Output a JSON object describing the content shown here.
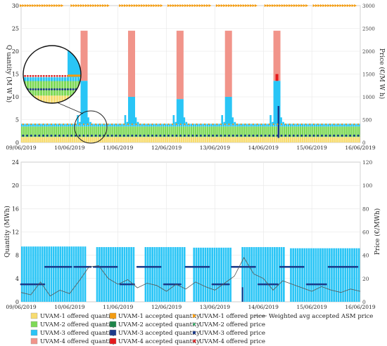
{
  "colors": {
    "uvam1_offered_quantity": "#f7dc6f",
    "uvam1_accepted_quantity": "#f39c12",
    "uvam2_offered_quantity": "#7ed957",
    "uvam2_accepted_quantity": "#1e8449",
    "uvam3_offered_quantity": "#29c5f6",
    "uvam3_accepted_quantity": "#1a3a8a",
    "uvam4_offered_quantity": "#f1948a",
    "uvam4_accepted_quantity": "#e41a1c",
    "uvam1_offered_price": "#f39c12",
    "uvam2_offered_price": "#27ae60",
    "uvam3_offered_price": "#1a3a8a",
    "uvam4_offered_price": "#d62728",
    "asm_price_line": "#555555"
  },
  "chart_data": [
    {
      "type": "bar",
      "panel": "top",
      "stacked": true,
      "xlabel": "",
      "ylabel": "Q uantity (M W h)",
      "ylabel_right": "Price (€/M W h)",
      "ylim": [
        0,
        30
      ],
      "ylim_right": [
        0,
        3000
      ],
      "yticks": [
        0,
        5,
        10,
        15,
        20,
        25,
        30
      ],
      "yticks_right": [
        0,
        500,
        1000,
        1500,
        2000,
        2500,
        3000
      ],
      "xlim": [
        "09/06/2019",
        "16/06/2019"
      ],
      "xtick_labels": [
        "09/06/2019",
        "10/06/2019",
        "11/06/2019",
        "12/06/2019",
        "13/06/2019",
        "14/06/2019",
        "15/06/2019",
        "16/06/2019"
      ],
      "grid": true,
      "baseline_offered": [
        {
          "name": "UVAM-1 offered quantity",
          "value": 1.2
        },
        {
          "name": "UVAM-2 offered quantity",
          "value": 2.3
        },
        {
          "name": "UVAM-3 offered quantity",
          "value": 0.6
        }
      ],
      "peaks": [
        {
          "day": "10/06/2019",
          "uvam3_offered": 13.5,
          "uvam4_offered": 24.5
        },
        {
          "day": "11/06/2019",
          "uvam3_offered": 10.0,
          "uvam4_offered": 24.5
        },
        {
          "day": "12/06/2019",
          "uvam3_offered": 9.5,
          "uvam4_offered": 24.5
        },
        {
          "day": "13/06/2019",
          "uvam3_offered": 10.0,
          "uvam4_offered": 24.5
        },
        {
          "day": "14/06/2019",
          "uvam3_offered": 13.5,
          "uvam4_offered": 24.5
        }
      ],
      "offered_price_levels": [
        {
          "name": "UVAM-1 offered price",
          "value": 3000
        },
        {
          "name": "UVAM-2 offered price",
          "value": 400
        },
        {
          "name": "UVAM-3 offered price",
          "value": 150
        }
      ]
    },
    {
      "type": "bar",
      "panel": "bottom",
      "stacked": true,
      "xlabel": "",
      "ylabel": "Quantity (MWh)",
      "ylabel_right": "Price (€/MWh)",
      "ylim": [
        0,
        24
      ],
      "ylim_right": [
        0,
        120
      ],
      "yticks": [
        0,
        4,
        8,
        12,
        16,
        20,
        24
      ],
      "yticks_right": [
        0,
        20,
        40,
        60,
        80,
        100,
        120
      ],
      "xlim": [
        "09/06/2019",
        "16/06/2019"
      ],
      "xtick_labels": [
        "09/06/2019",
        "10/06/2019",
        "11/06/2019",
        "12/06/2019",
        "13/06/2019",
        "14/06/2019",
        "15/06/2019",
        "16/06/2019"
      ],
      "grid": true,
      "offered_blocks": [
        {
          "start": 0.0,
          "end": 1.35,
          "uvam3_offered": 9.5
        },
        {
          "start": 1.55,
          "end": 2.35,
          "uvam3_offered": 9.4
        },
        {
          "start": 2.55,
          "end": 3.4,
          "uvam3_offered": 9.4
        },
        {
          "start": 3.55,
          "end": 4.35,
          "uvam3_offered": 9.3
        },
        {
          "start": 4.55,
          "end": 5.45,
          "uvam3_offered": 9.4
        },
        {
          "start": 5.55,
          "end": 7.0,
          "uvam3_offered": 9.2
        }
      ],
      "offered_price_levels": [
        {
          "name": "UVAM-3 offered price",
          "values": [
            15,
            30
          ]
        }
      ],
      "series": [
        {
          "name": "Weighted avg accepted ASM price",
          "x": [
            0.0,
            0.2,
            0.4,
            0.6,
            0.8,
            1.0,
            1.2,
            1.4,
            1.6,
            1.8,
            2.0,
            2.2,
            2.4,
            2.6,
            2.8,
            3.0,
            3.2,
            3.4,
            3.6,
            3.8,
            4.0,
            4.2,
            4.4,
            4.6,
            4.8,
            5.0,
            5.2,
            5.4,
            5.6,
            5.8,
            6.0,
            6.2,
            6.4,
            6.6,
            6.8,
            7.0
          ],
          "y": [
            8,
            6,
            17,
            5,
            10,
            7,
            18,
            30,
            31,
            20,
            15,
            19,
            12,
            16,
            14,
            9,
            15,
            11,
            17,
            13,
            10,
            16,
            22,
            38,
            24,
            20,
            10,
            18,
            15,
            12,
            9,
            13,
            10,
            8,
            11,
            9
          ]
        }
      ]
    }
  ],
  "legend": {
    "uvam1_offered_quantity": "UVAM-1 offered quantity",
    "uvam1_accepted_quantity": "UVAM-1 accepted quantity",
    "uvam1_offered_price": "UVAM-1 offered price",
    "asm_price": "Weighted avg accepted ASM price",
    "uvam2_offered_quantity": "UVAM-2 offered quantity",
    "uvam2_accepted_quantity": "UVAM-2 accepted quantity",
    "uvam2_offered_price": "UVAM-2 offered price",
    "uvam3_offered_quantity": "UVAM-3 offered quantity",
    "uvam3_accepted_quantity": "UVAM-3 accepted quantity",
    "uvam3_offered_price": "UVAM-3 offered price",
    "uvam4_offered_quantity": "UVAM-4 offered quantity",
    "uvam4_accepted_quantity": "UVAM-4 accepted quantity",
    "uvam4_offered_price": "UVAM-4 offered price"
  }
}
